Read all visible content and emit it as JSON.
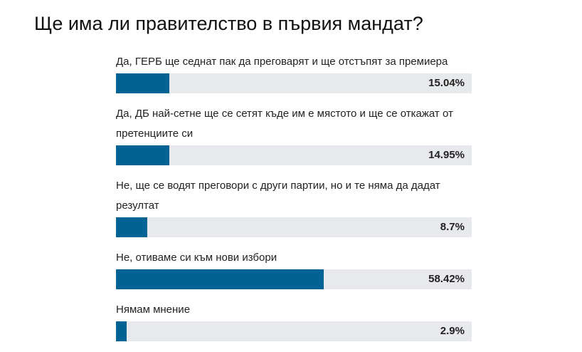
{
  "chart_data": {
    "type": "bar",
    "orientation": "horizontal",
    "title": "Ще има ли правителство в първия мандат?",
    "categories": [
      "Да, ГЕРБ ще седнат пак да преговарят и ще отстъпят за премиера",
      "Да, ДБ най-сетне ще се сетят къде им е мястото и ще се откажат от претенциите си",
      "Не, ще се водят преговори с други партии, но и те няма да дадат резултат",
      "Не, отиваме си към нови избори",
      "Нямам мнение"
    ],
    "values": [
      15.04,
      14.95,
      8.7,
      58.42,
      2.9
    ],
    "value_labels": [
      "15.04%",
      "14.95%",
      "8.7%",
      "58.42%",
      "2.9%"
    ],
    "xlim": [
      0,
      100
    ],
    "color": "#006394",
    "track_color": "#e8e9ec"
  }
}
